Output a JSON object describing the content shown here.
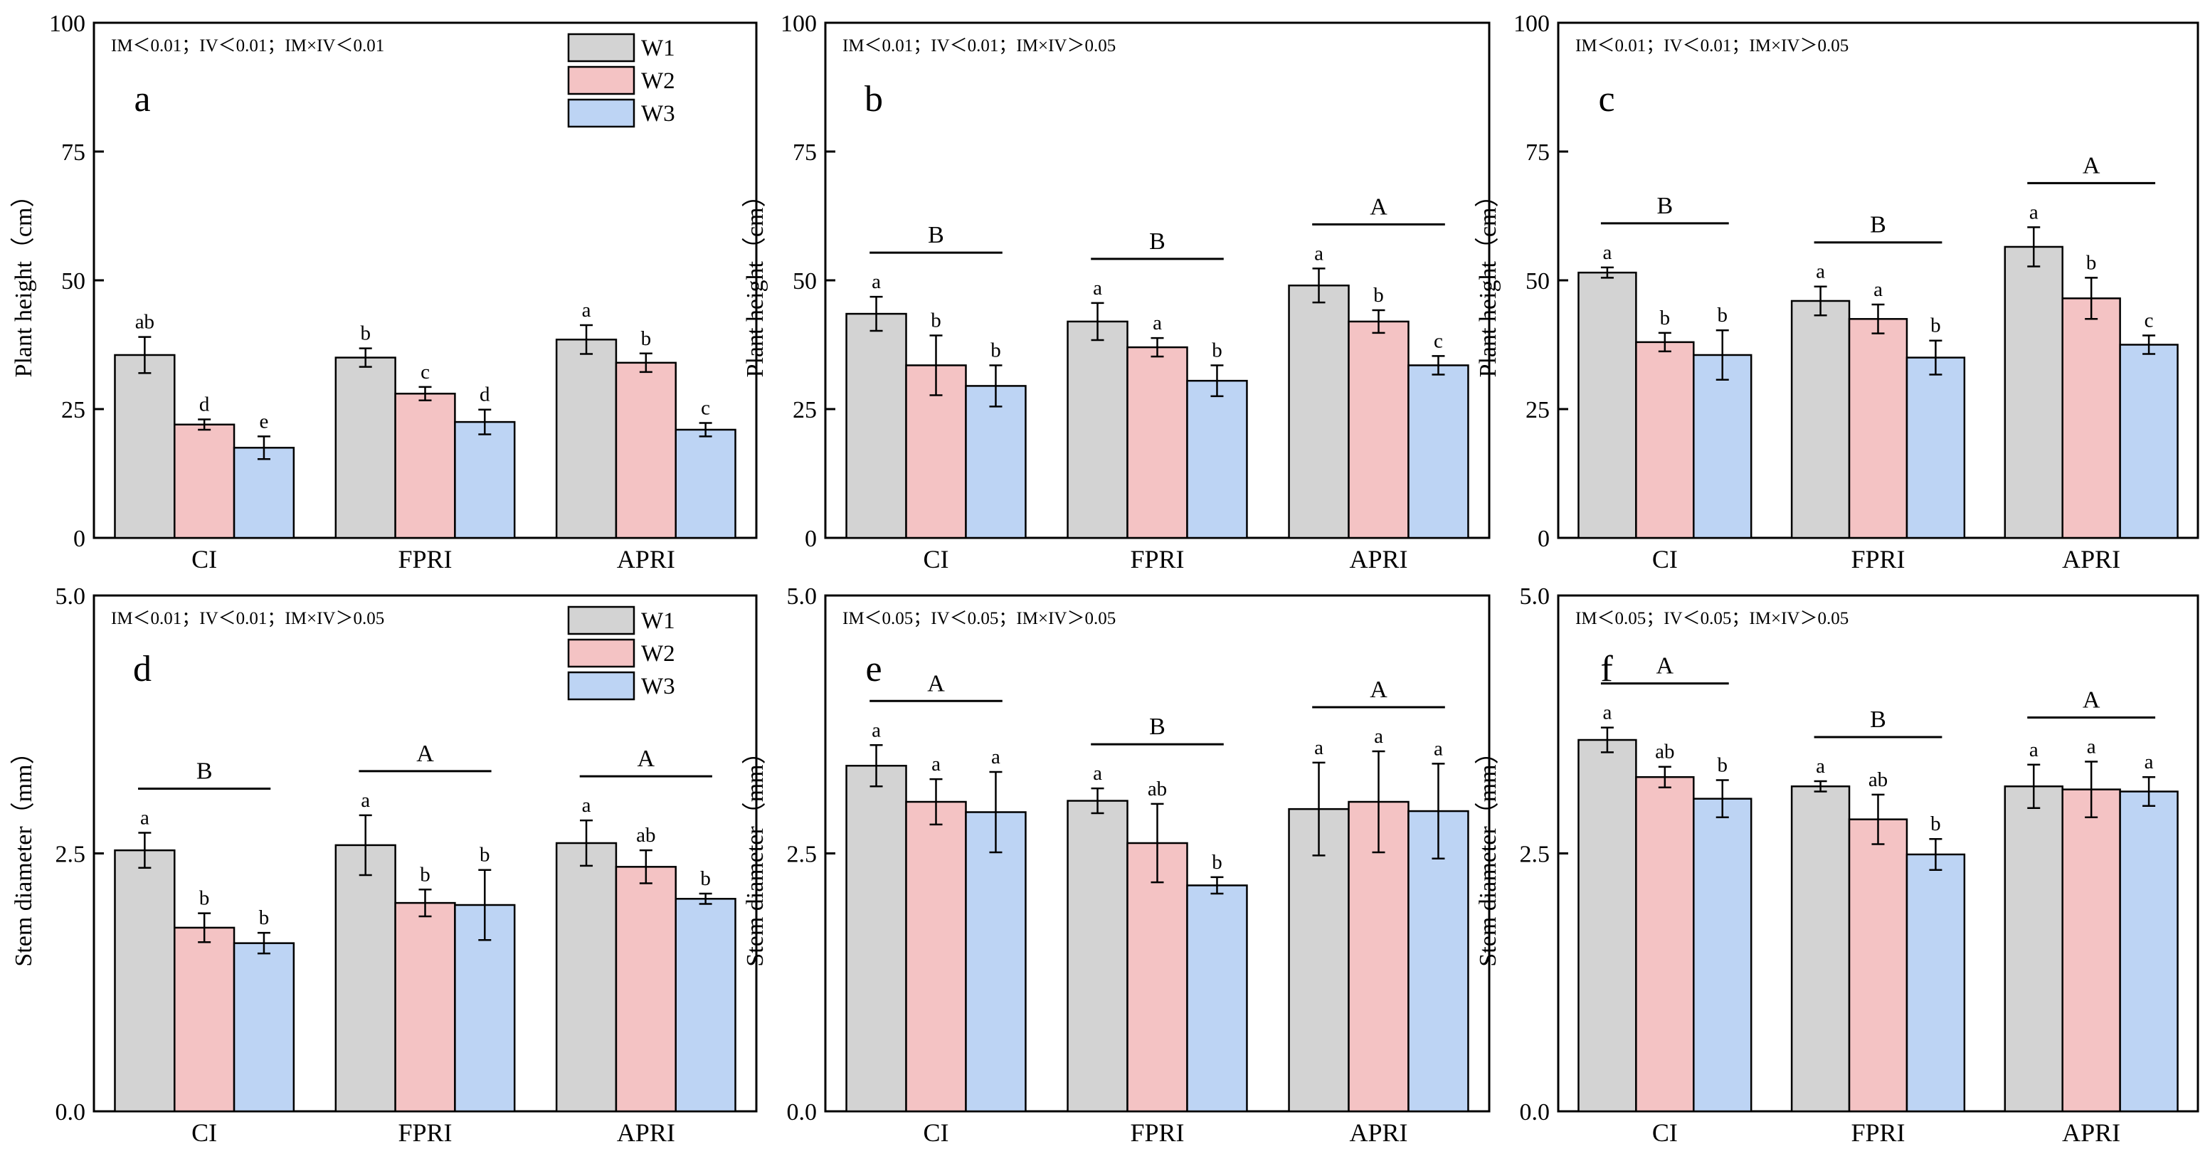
{
  "figure_colors": {
    "W1": "#d3d3d3",
    "W2": "#f4c3c4",
    "W3": "#bdd4f4"
  },
  "chart_data": [
    {
      "type": "bar",
      "panel_label": "a",
      "stats_note": "IM＜0.01；IV＜0.01；IM×IV＜0.01",
      "ylabel": "Plant height（cm）",
      "xlabel": "",
      "ylim": [
        0,
        100
      ],
      "yticks": [
        "0",
        "25",
        "50",
        "75",
        "100"
      ],
      "yticks_values": [
        0,
        25,
        50,
        75,
        100
      ],
      "categories": [
        "CI",
        "FPRI",
        "APRI"
      ],
      "legend": [
        "W1",
        "W2",
        "W3"
      ],
      "series": [
        {
          "name": "W1",
          "values": [
            35.5,
            35.0,
            38.5
          ],
          "errors": [
            3.5,
            1.8,
            2.8
          ],
          "letters": [
            "ab",
            "b",
            "a"
          ]
        },
        {
          "name": "W2",
          "values": [
            22.0,
            28.0,
            34.0
          ],
          "errors": [
            1.0,
            1.3,
            1.8
          ],
          "letters": [
            "d",
            "c",
            "b"
          ]
        },
        {
          "name": "W3",
          "values": [
            17.5,
            22.5,
            21.0
          ],
          "errors": [
            2.2,
            2.4,
            1.3
          ],
          "letters": [
            "e",
            "d",
            "c"
          ]
        }
      ],
      "group_letters": []
    },
    {
      "type": "bar",
      "panel_label": "b",
      "stats_note": "IM＜0.01；IV＜0.01；IM×IV＞0.05",
      "ylabel": "Plant height（cm）",
      "xlabel": "",
      "ylim": [
        0,
        100
      ],
      "yticks": [
        "0",
        "25",
        "50",
        "75",
        "100"
      ],
      "yticks_values": [
        0,
        25,
        50,
        75,
        100
      ],
      "categories": [
        "CI",
        "FPRI",
        "APRI"
      ],
      "legend": [],
      "series": [
        {
          "name": "W1",
          "values": [
            43.5,
            42.0,
            49.0
          ],
          "errors": [
            3.3,
            3.6,
            3.3
          ],
          "letters": [
            "a",
            "a",
            "a"
          ]
        },
        {
          "name": "W2",
          "values": [
            33.5,
            37.0,
            42.0
          ],
          "errors": [
            5.8,
            1.8,
            2.2
          ],
          "letters": [
            "b",
            "a",
            "b"
          ]
        },
        {
          "name": "W3",
          "values": [
            29.5,
            30.5,
            33.5
          ],
          "errors": [
            4.0,
            3.0,
            1.8
          ],
          "letters": [
            "b",
            "b",
            "c"
          ]
        }
      ],
      "group_letters": [
        "B",
        "B",
        "A"
      ]
    },
    {
      "type": "bar",
      "panel_label": "c",
      "stats_note": "IM＜0.01；IV＜0.01；IM×IV＞0.05",
      "ylabel": "Plant height（cm）",
      "xlabel": "",
      "ylim": [
        0,
        100
      ],
      "yticks": [
        "0",
        "25",
        "50",
        "75",
        "100"
      ],
      "yticks_values": [
        0,
        25,
        50,
        75,
        100
      ],
      "categories": [
        "CI",
        "FPRI",
        "APRI"
      ],
      "legend": [],
      "series": [
        {
          "name": "W1",
          "values": [
            51.5,
            46.0,
            56.5
          ],
          "errors": [
            1.0,
            2.8,
            3.8
          ],
          "letters": [
            "a",
            "a",
            "a"
          ]
        },
        {
          "name": "W2",
          "values": [
            38.0,
            42.5,
            46.5
          ],
          "errors": [
            1.8,
            2.8,
            4.0
          ],
          "letters": [
            "b",
            "a",
            "b"
          ]
        },
        {
          "name": "W3",
          "values": [
            35.5,
            35.0,
            37.5
          ],
          "errors": [
            4.8,
            3.3,
            1.8
          ],
          "letters": [
            "b",
            "b",
            "c"
          ]
        }
      ],
      "group_letters": [
        "B",
        "B",
        "A"
      ]
    },
    {
      "type": "bar",
      "panel_label": "d",
      "stats_note": "IM＜0.01；IV＜0.01；IM×IV＞0.05",
      "ylabel": "Stem diameter（mm）",
      "xlabel": "",
      "ylim": [
        0,
        5
      ],
      "yticks": [
        "0.0",
        "2.5",
        "5.0"
      ],
      "yticks_values": [
        0,
        2.5,
        5
      ],
      "categories": [
        "CI",
        "FPRI",
        "APRI"
      ],
      "legend": [
        "W1",
        "W2",
        "W3"
      ],
      "series": [
        {
          "name": "W1",
          "values": [
            2.53,
            2.58,
            2.6
          ],
          "errors": [
            0.17,
            0.29,
            0.22
          ],
          "letters": [
            "a",
            "a",
            "a"
          ]
        },
        {
          "name": "W2",
          "values": [
            1.78,
            2.02,
            2.37
          ],
          "errors": [
            0.14,
            0.13,
            0.16
          ],
          "letters": [
            "b",
            "b",
            "ab"
          ]
        },
        {
          "name": "W3",
          "values": [
            1.63,
            2.0,
            2.06
          ],
          "errors": [
            0.1,
            0.34,
            0.05
          ],
          "letters": [
            "b",
            "b",
            "b"
          ]
        }
      ],
      "group_letters": [
        "B",
        "A",
        "A"
      ]
    },
    {
      "type": "bar",
      "panel_label": "e",
      "stats_note": "IM＜0.05；IV＜0.05；IM×IV＞0.05",
      "ylabel": "Stem diameter（mm）",
      "xlabel": "",
      "ylim": [
        0,
        5
      ],
      "yticks": [
        "0.0",
        "2.5",
        "5.0"
      ],
      "yticks_values": [
        0,
        2.5,
        5
      ],
      "categories": [
        "CI",
        "FPRI",
        "APRI"
      ],
      "legend": [],
      "series": [
        {
          "name": "W1",
          "values": [
            3.35,
            3.01,
            2.93
          ],
          "errors": [
            0.2,
            0.12,
            0.45
          ],
          "letters": [
            "a",
            "a",
            "a"
          ]
        },
        {
          "name": "W2",
          "values": [
            3.0,
            2.6,
            3.0
          ],
          "errors": [
            0.22,
            0.38,
            0.49
          ],
          "letters": [
            "a",
            "ab",
            "a"
          ]
        },
        {
          "name": "W3",
          "values": [
            2.9,
            2.19,
            2.91
          ],
          "errors": [
            0.39,
            0.08,
            0.46
          ],
          "letters": [
            "a",
            "b",
            "a"
          ]
        }
      ],
      "group_letters": [
        "A",
        "B",
        "A"
      ]
    },
    {
      "type": "bar",
      "panel_label": "f",
      "stats_note": "IM＜0.05；IV＜0.05；IM×IV＞0.05",
      "ylabel": "Stem diameter（mm）",
      "xlabel": "",
      "ylim": [
        0,
        5
      ],
      "yticks": [
        "0.0",
        "2.5",
        "5.0"
      ],
      "yticks_values": [
        0,
        2.5,
        5
      ],
      "categories": [
        "CI",
        "FPRI",
        "APRI"
      ],
      "legend": [],
      "series": [
        {
          "name": "W1",
          "values": [
            3.6,
            3.15,
            3.15
          ],
          "errors": [
            0.12,
            0.05,
            0.21
          ],
          "letters": [
            "a",
            "a",
            "a"
          ]
        },
        {
          "name": "W2",
          "values": [
            3.24,
            2.83,
            3.12
          ],
          "errors": [
            0.1,
            0.24,
            0.27
          ],
          "letters": [
            "ab",
            "ab",
            "a"
          ]
        },
        {
          "name": "W3",
          "values": [
            3.03,
            2.49,
            3.1
          ],
          "errors": [
            0.18,
            0.15,
            0.14
          ],
          "letters": [
            "b",
            "b",
            "a"
          ]
        }
      ],
      "group_letters": [
        "A",
        "B",
        "A"
      ]
    }
  ]
}
